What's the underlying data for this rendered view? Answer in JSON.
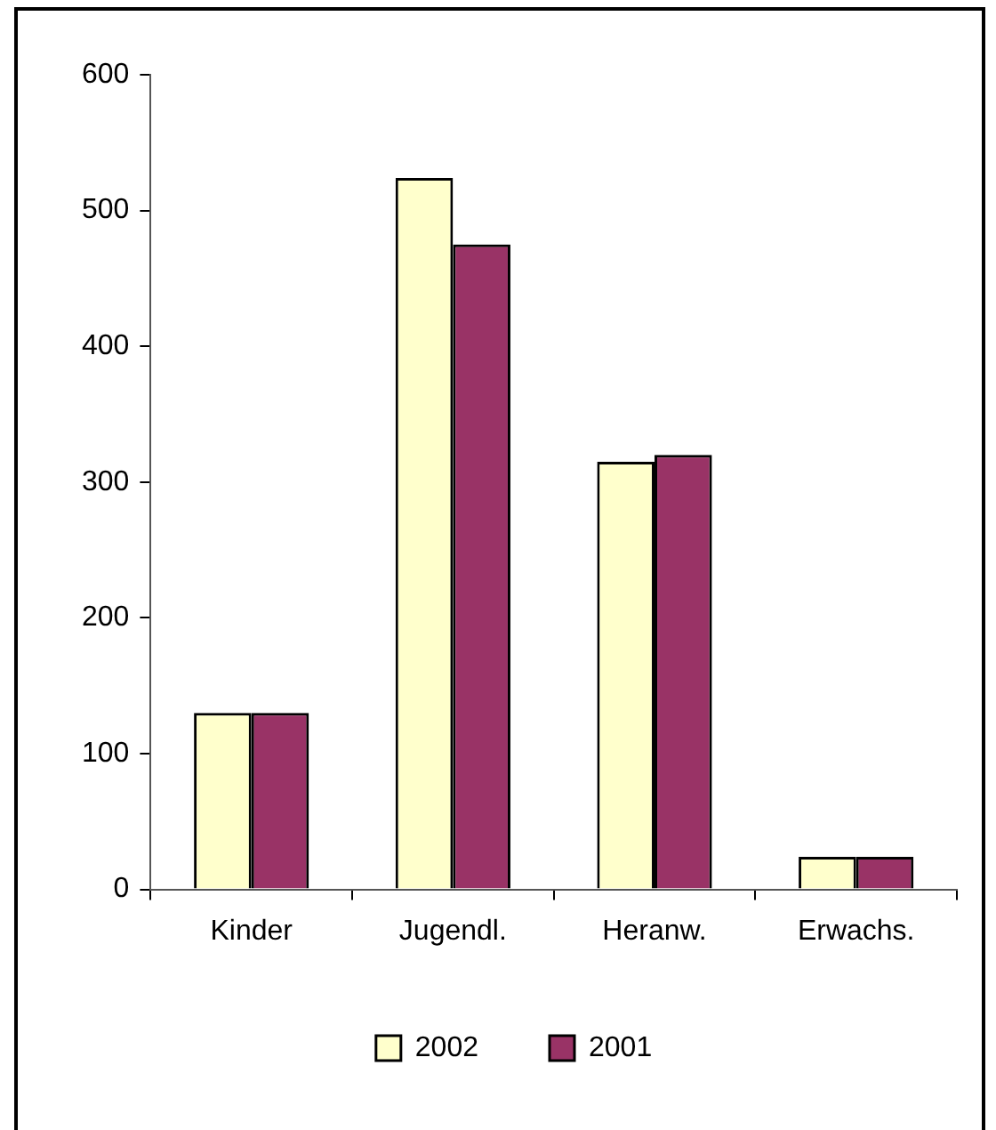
{
  "chart_data": {
    "type": "bar",
    "categories": [
      "Kinder",
      "Jugendl.",
      "Heranw.",
      "Erwachs."
    ],
    "series": [
      {
        "name": "2002",
        "color": "#ffffcc",
        "values": [
          130,
          524,
          315,
          24
        ]
      },
      {
        "name": "2001",
        "color": "#993366",
        "values": [
          130,
          475,
          320,
          24
        ]
      }
    ],
    "ylim": [
      0,
      600
    ],
    "yticks": [
      0,
      100,
      200,
      300,
      400,
      500,
      600
    ],
    "grid": false,
    "legend": "bottom"
  }
}
